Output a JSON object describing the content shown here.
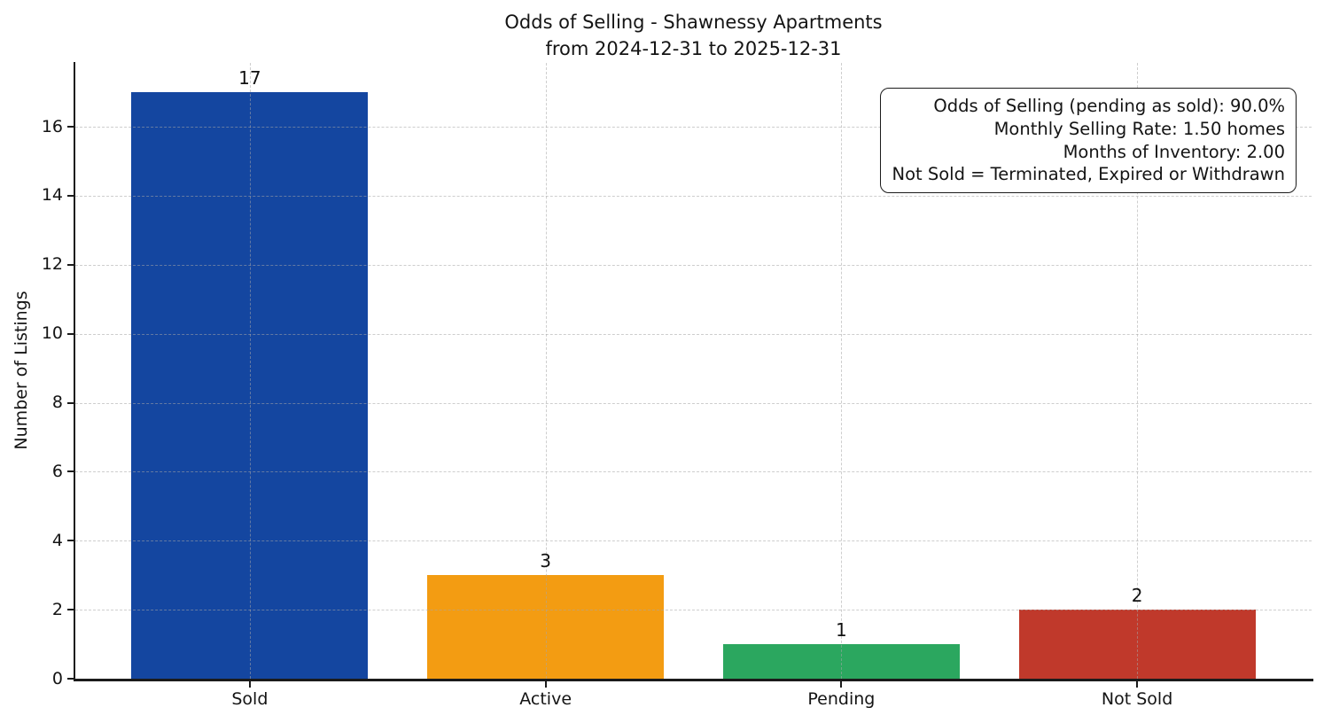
{
  "chart_data": {
    "type": "bar",
    "title": "Odds of Selling - Shawnessy Apartments",
    "subtitle": "from 2024-12-31 to 2025-12-31",
    "categories": [
      "Sold",
      "Active",
      "Pending",
      "Not Sold"
    ],
    "values": [
      17,
      3,
      1,
      2
    ],
    "bar_colors": [
      "#1446A0",
      "#F39C12",
      "#2BA75F",
      "#C0392B"
    ],
    "xlabel": "",
    "ylabel": "Number of Listings",
    "yticks": [
      0,
      2,
      4,
      6,
      8,
      10,
      12,
      14,
      16
    ],
    "ylim": [
      0,
      17.85
    ],
    "grid": "dashed, both axes, drawn over bars",
    "legend": "none",
    "annotation": {
      "lines": [
        "Odds of Selling (pending as sold): 90.0%",
        "Monthly Selling Rate: 1.50 homes",
        "Months of Inventory: 2.00",
        "Not Sold = Terminated, Expired or Withdrawn"
      ]
    }
  }
}
